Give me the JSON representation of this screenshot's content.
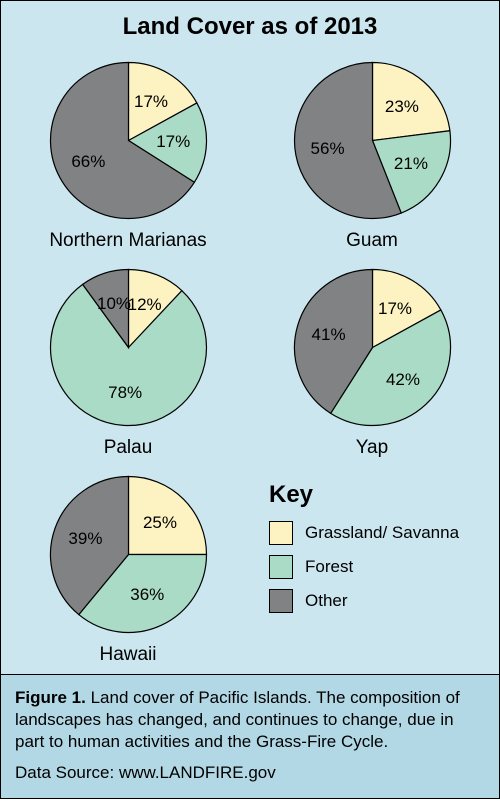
{
  "title": "Land Cover as of 2013",
  "colors": {
    "grassland": "#fdf2c1",
    "forest": "#a9dbc6",
    "other": "#808284",
    "panel_bg": "#cbe6ef",
    "caption_bg": "#b2d8e5",
    "border": "#000000",
    "text": "#000000"
  },
  "pie_config": {
    "radius": 78,
    "start_angle_deg": 0,
    "label_fontsize": 17,
    "caption_fontsize": 19,
    "stroke_width": 1.2
  },
  "legend": {
    "title": "Key",
    "items": [
      {
        "label": "Grassland/ Savanna",
        "color_key": "grassland"
      },
      {
        "label": "Forest",
        "color_key": "forest"
      },
      {
        "label": "Other",
        "color_key": "other"
      }
    ]
  },
  "pies": [
    {
      "name": "Northern Marianas",
      "slices": [
        {
          "value": 17,
          "label": "17%",
          "color_key": "grassland"
        },
        {
          "value": 17,
          "label": "17%",
          "color_key": "forest"
        },
        {
          "value": 66,
          "label": "66%",
          "color_key": "other"
        }
      ]
    },
    {
      "name": "Guam",
      "slices": [
        {
          "value": 23,
          "label": "23%",
          "color_key": "grassland"
        },
        {
          "value": 21,
          "label": "21%",
          "color_key": "forest"
        },
        {
          "value": 56,
          "label": "56%",
          "color_key": "other"
        }
      ]
    },
    {
      "name": "Palau",
      "slices": [
        {
          "value": 12,
          "label": "12%",
          "color_key": "grassland"
        },
        {
          "value": 78,
          "label": "78%",
          "color_key": "forest"
        },
        {
          "value": 10,
          "label": "10%",
          "color_key": "other"
        }
      ]
    },
    {
      "name": "Yap",
      "slices": [
        {
          "value": 17,
          "label": "17%",
          "color_key": "grassland"
        },
        {
          "value": 42,
          "label": "42%",
          "color_key": "forest"
        },
        {
          "value": 41,
          "label": "41%",
          "color_key": "other"
        }
      ]
    },
    {
      "name": "Hawaii",
      "slices": [
        {
          "value": 25,
          "label": "25%",
          "color_key": "grassland"
        },
        {
          "value": 36,
          "label": "36%",
          "color_key": "forest"
        },
        {
          "value": 39,
          "label": "39%",
          "color_key": "other"
        }
      ]
    }
  ],
  "caption": {
    "figure_label": "Figure 1.",
    "text": " Land cover of Pacific Islands. The composition of landscapes has changed, and continues to change, due in part to human activities and the Grass-Fire Cycle.",
    "source_label": "Data Source: www.LANDFIRE.gov"
  }
}
